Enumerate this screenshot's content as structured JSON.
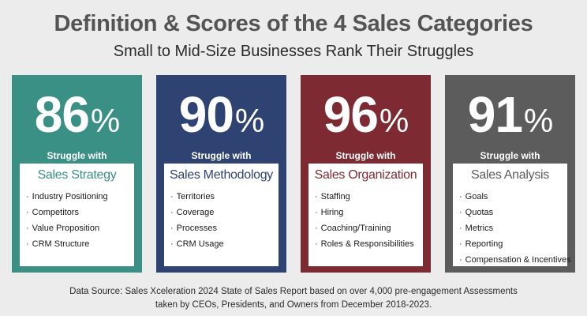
{
  "title": "Definition & Scores of the 4 Sales Categories",
  "subtitle": "Small to Mid-Size Businesses Rank Their Struggles",
  "cards": [
    {
      "percent": "86",
      "percent_sign": "%",
      "struggle_text": "Struggle with",
      "category": "Sales Strategy",
      "items": [
        "Industry Positioning",
        "Competitors",
        "Value Proposition",
        "CRM Structure"
      ],
      "color": "#3a9085",
      "category_color": "#3a9085"
    },
    {
      "percent": "90",
      "percent_sign": "%",
      "struggle_text": "Struggle with",
      "category": "Sales Methodology",
      "items": [
        "Territories",
        "Coverage",
        "Processes",
        "CRM Usage"
      ],
      "color": "#2e4372",
      "category_color": "#2e4372"
    },
    {
      "percent": "96",
      "percent_sign": "%",
      "struggle_text": "Struggle with",
      "category": "Sales Organization",
      "items": [
        "Staffing",
        "Hiring",
        "Coaching/Training",
        "Roles & Responsibilities"
      ],
      "color": "#7d2a33",
      "category_color": "#7d2a33"
    },
    {
      "percent": "91",
      "percent_sign": "%",
      "struggle_text": "Struggle with",
      "category": "Sales Analysis",
      "items": [
        "Goals",
        "Quotas",
        "Metrics",
        "Reporting",
        "Compensation & Incentives"
      ],
      "color": "#5c5c5c",
      "category_color": "#5c5c5c"
    }
  ],
  "footer": {
    "line1": "Data Source: Sales Xceleration 2024 State of Sales Report based on over 4,000 pre-engagement Assessments",
    "line2": "taken by CEOs, Presidents, and Owners from December 2018-2023."
  }
}
